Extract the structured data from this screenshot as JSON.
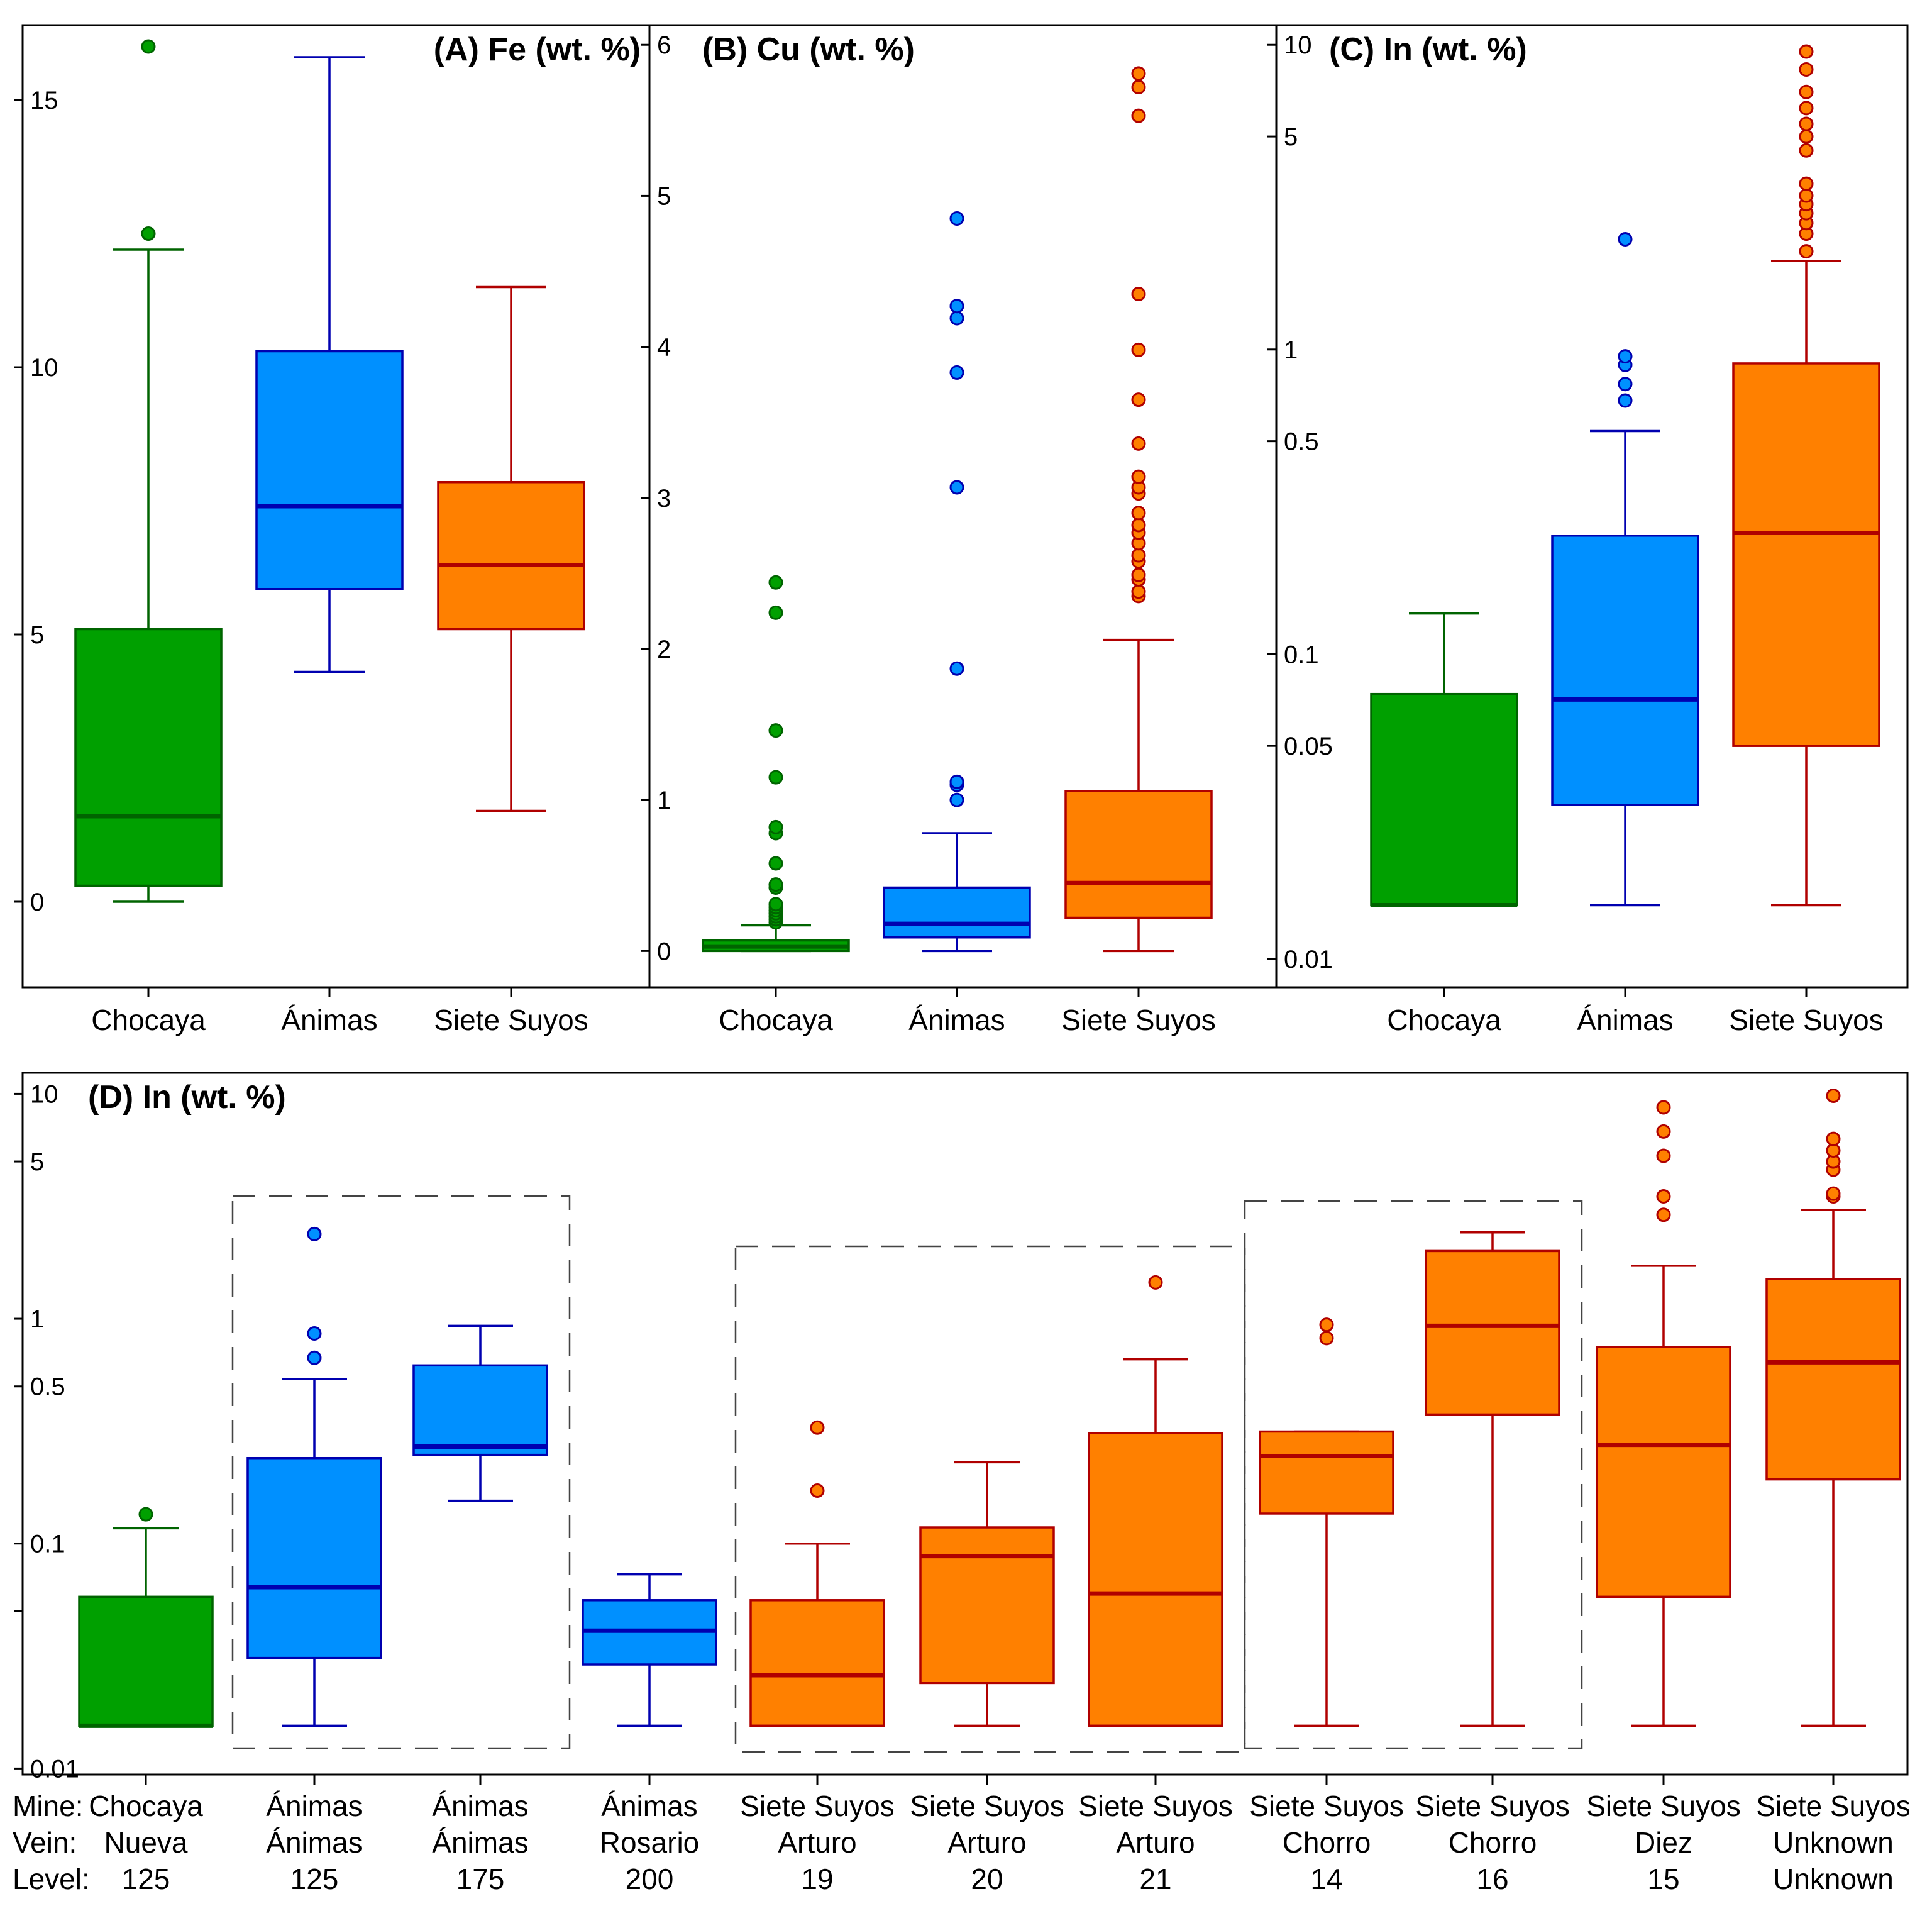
{
  "colors": {
    "chocaya_fill": "#00A000",
    "chocaya_line": "#006400",
    "animas_fill": "#0090FF",
    "animas_line": "#0000B0",
    "siete_fill": "#FF8000",
    "siete_line": "#B00000"
  },
  "chart_data": [
    {
      "id": "A",
      "type": "box",
      "title": "(A) Fe (wt. %)",
      "scale": "linear",
      "ylim": [
        -1.6,
        16.4
      ],
      "ticks": [
        0,
        5,
        10,
        15
      ],
      "tick_labels": [
        "0",
        "5",
        "10",
        "15"
      ],
      "categories": [
        "Chocaya",
        "Ánimas",
        "Siete Suyos"
      ],
      "boxes": [
        {
          "group": "chocaya",
          "whislo": 0.0,
          "q1": 0.3,
          "med": 1.6,
          "q3": 5.1,
          "whishi": 12.2,
          "fliers": [
            12.5,
            16.0
          ]
        },
        {
          "group": "animas",
          "whislo": 4.3,
          "q1": 5.85,
          "med": 7.4,
          "q3": 10.3,
          "whishi": 15.8,
          "fliers": []
        },
        {
          "group": "siete",
          "whislo": 1.7,
          "q1": 5.1,
          "med": 6.3,
          "q3": 7.85,
          "whishi": 11.5,
          "fliers": []
        }
      ]
    },
    {
      "id": "B",
      "type": "box",
      "title": "(B) Cu (wt. %)",
      "scale": "linear",
      "ylim": [
        -0.24,
        6.13
      ],
      "ticks": [
        0,
        1,
        2,
        3,
        4,
        5,
        6
      ],
      "tick_labels": [
        "0",
        "1",
        "2",
        "3",
        "4",
        "5",
        "6"
      ],
      "categories": [
        "Chocaya",
        "Ánimas",
        "Siete Suyos"
      ],
      "boxes": [
        {
          "group": "chocaya",
          "whislo": 0.0,
          "q1": 0.0,
          "med": 0.03,
          "q3": 0.07,
          "whishi": 0.17,
          "fliers": [
            0.19,
            0.21,
            0.23,
            0.25,
            0.27,
            0.29,
            0.31,
            0.42,
            0.44,
            0.58,
            0.78,
            0.82,
            1.15,
            1.46,
            2.24,
            2.44
          ]
        },
        {
          "group": "animas",
          "whislo": 0.0,
          "q1": 0.09,
          "med": 0.18,
          "q3": 0.42,
          "whishi": 0.78,
          "fliers": [
            1.0,
            1.1,
            1.12,
            1.87,
            3.07,
            3.83,
            4.19,
            4.27,
            4.85
          ]
        },
        {
          "group": "siete",
          "whislo": 0.0,
          "q1": 0.22,
          "med": 0.45,
          "q3": 1.06,
          "whishi": 2.06,
          "fliers": [
            2.35,
            2.38,
            2.46,
            2.49,
            2.58,
            2.62,
            2.7,
            2.77,
            2.82,
            2.9,
            3.03,
            3.07,
            3.14,
            3.36,
            3.65,
            3.98,
            4.35,
            5.53,
            5.72,
            5.81
          ]
        }
      ]
    },
    {
      "id": "C",
      "type": "box",
      "title": "(C) In (wt. %)",
      "scale": "log",
      "ylim": [
        0.00807,
        11.6
      ],
      "ticks": [
        0.01,
        0.05,
        0.1,
        0.5,
        1,
        5,
        10
      ],
      "tick_labels": [
        "0.01",
        "0.05",
        "0.1",
        "0.5",
        "1",
        "5",
        "10"
      ],
      "categories": [
        "Chocaya",
        "Ánimas",
        "Siete Suyos"
      ],
      "boxes": [
        {
          "group": "chocaya",
          "whislo": 0.015,
          "q1": 0.015,
          "med": 0.015,
          "q3": 0.074,
          "whishi": 0.136,
          "fliers": []
        },
        {
          "group": "animas",
          "whislo": 0.015,
          "q1": 0.032,
          "med": 0.071,
          "q3": 0.245,
          "whishi": 0.54,
          "fliers": [
            0.68,
            0.77,
            0.89,
            0.95,
            2.3
          ]
        },
        {
          "group": "siete",
          "whislo": 0.015,
          "q1": 0.05,
          "med": 0.25,
          "q3": 0.9,
          "whishi": 1.95,
          "fliers": [
            2.1,
            2.4,
            2.6,
            2.8,
            3.0,
            3.2,
            3.5,
            4.5,
            5.0,
            5.5,
            6.2,
            7.0,
            8.3,
            9.5
          ]
        }
      ]
    },
    {
      "id": "D",
      "type": "box",
      "title": "(D) In (wt. %)",
      "scale": "log",
      "ylim": [
        0.0094,
        12.4
      ],
      "ticks": [
        0.01,
        0.05,
        0.1,
        0.5,
        1,
        5,
        10
      ],
      "tick_labels": [
        "0.01",
        "",
        "0.1",
        "0.5",
        "1",
        "5",
        "10"
      ],
      "row_labels": [
        "Mine:",
        "Vein:",
        "Level:"
      ],
      "categories": [
        {
          "mine": "Chocaya",
          "vein": "Nueva",
          "level": "125"
        },
        {
          "mine": "Ánimas",
          "vein": "Ánimas",
          "level": "125"
        },
        {
          "mine": "Ánimas",
          "vein": "Ánimas",
          "level": "175"
        },
        {
          "mine": "Ánimas",
          "vein": "Rosario",
          "level": "200"
        },
        {
          "mine": "Siete Suyos",
          "vein": "Arturo",
          "level": "19"
        },
        {
          "mine": "Siete Suyos",
          "vein": "Arturo",
          "level": "20"
        },
        {
          "mine": "Siete Suyos",
          "vein": "Arturo",
          "level": "21"
        },
        {
          "mine": "Siete Suyos",
          "vein": "Chorro",
          "level": "14"
        },
        {
          "mine": "Siete Suyos",
          "vein": "Chorro",
          "level": "16"
        },
        {
          "mine": "Siete Suyos",
          "vein": "Diez",
          "level": "15"
        },
        {
          "mine": "Siete Suyos",
          "vein": "Unknown",
          "level": "Unknown"
        }
      ],
      "boxes": [
        {
          "group": "chocaya",
          "whislo": 0.0155,
          "q1": 0.0155,
          "med": 0.0155,
          "q3": 0.058,
          "whishi": 0.117,
          "fliers": [
            0.135
          ]
        },
        {
          "group": "animas",
          "whislo": 0.0155,
          "q1": 0.031,
          "med": 0.064,
          "q3": 0.24,
          "whishi": 0.54,
          "fliers": [
            0.67,
            0.86,
            2.38
          ]
        },
        {
          "group": "animas",
          "whislo": 0.155,
          "q1": 0.248,
          "med": 0.27,
          "q3": 0.62,
          "whishi": 0.93,
          "fliers": []
        },
        {
          "group": "animas",
          "whislo": 0.0155,
          "q1": 0.029,
          "med": 0.041,
          "q3": 0.056,
          "whishi": 0.073,
          "fliers": []
        },
        {
          "group": "siete",
          "whislo": 0.0155,
          "q1": 0.0155,
          "med": 0.026,
          "q3": 0.056,
          "whishi": 0.1,
          "fliers": [
            0.172,
            0.328
          ]
        },
        {
          "group": "siete",
          "whislo": 0.0155,
          "q1": 0.024,
          "med": 0.088,
          "q3": 0.118,
          "whishi": 0.23,
          "fliers": []
        },
        {
          "group": "siete",
          "whislo": 0.0155,
          "q1": 0.0155,
          "med": 0.06,
          "q3": 0.31,
          "whishi": 0.66,
          "fliers": [
            1.45
          ]
        },
        {
          "group": "siete",
          "whislo": 0.0155,
          "q1": 0.136,
          "med": 0.245,
          "q3": 0.315,
          "whishi": 0.315,
          "fliers": [
            0.82,
            0.94
          ]
        },
        {
          "group": "siete",
          "whislo": 0.0155,
          "q1": 0.375,
          "med": 0.93,
          "q3": 2.0,
          "whishi": 2.42,
          "fliers": []
        },
        {
          "group": "siete",
          "whislo": 0.0155,
          "q1": 0.058,
          "med": 0.275,
          "q3": 0.75,
          "whishi": 1.72,
          "fliers": [
            2.9,
            3.5,
            5.3,
            6.8,
            8.7
          ]
        },
        {
          "group": "siete",
          "whislo": 0.0155,
          "q1": 0.193,
          "med": 0.64,
          "q3": 1.5,
          "whishi": 3.05,
          "fliers": [
            3.5,
            3.6,
            4.6,
            5.0,
            5.6,
            6.3,
            9.8
          ]
        }
      ],
      "groupings": [
        {
          "from": 1,
          "to": 2
        },
        {
          "from": 4,
          "to": 6
        },
        {
          "from": 7,
          "to": 8
        }
      ]
    }
  ]
}
